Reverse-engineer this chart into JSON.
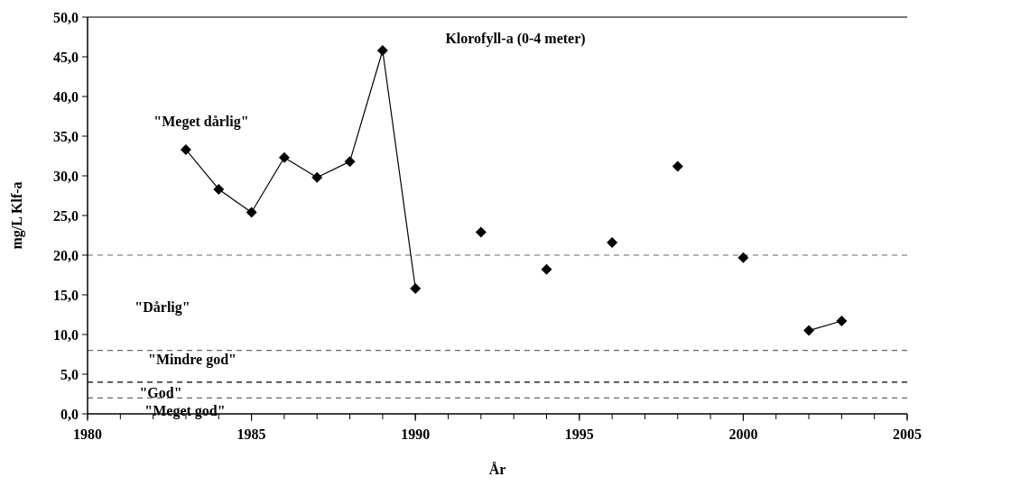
{
  "chart_data": {
    "type": "line",
    "title": "Klorofyll-a (0-4 meter)",
    "xlabel": "År",
    "ylabel": "mg/L Klf-a",
    "x": [
      1983,
      1984,
      1985,
      1986,
      1987,
      1988,
      1989,
      1990,
      1991,
      1992,
      1993,
      1994,
      1995,
      1996,
      1997,
      1998,
      1999,
      2000,
      2001,
      2002,
      2003
    ],
    "series": [
      {
        "color": "#000000",
        "values": [
          33.3,
          28.3,
          25.4,
          32.3,
          29.8,
          31.8,
          45.8,
          15.8,
          null,
          22.9,
          null,
          18.2,
          null,
          21.6,
          null,
          31.2,
          null,
          19.7,
          null,
          10.5,
          11.7
        ]
      }
    ],
    "marker": "diamond",
    "line_style": "solid",
    "grid": false,
    "xlim": [
      1980,
      2005
    ],
    "xticks": [
      1980,
      1985,
      1990,
      1995,
      2000,
      2005
    ],
    "ylim": [
      0,
      50
    ],
    "yticks": [
      {
        "value": 0,
        "label": "0,0"
      },
      {
        "value": 5,
        "label": "5,0"
      },
      {
        "value": 10,
        "label": "10,0"
      },
      {
        "value": 15,
        "label": "15,0"
      },
      {
        "value": 20,
        "label": "20,0"
      },
      {
        "value": 25,
        "label": "25,0"
      },
      {
        "value": 30,
        "label": "30,0"
      },
      {
        "value": 35,
        "label": "35,0"
      },
      {
        "value": 40,
        "label": "40,0"
      },
      {
        "value": 45,
        "label": "45,0"
      },
      {
        "value": 50,
        "label": "50,0"
      }
    ],
    "ref_lines": [
      {
        "axis": "y",
        "value": 20,
        "color": "#666666",
        "line_style": "dashed"
      },
      {
        "axis": "y",
        "value": 8,
        "color": "#666666",
        "line_style": "dashed"
      },
      {
        "axis": "y",
        "value": 4,
        "color": "#000000",
        "line_style": "dashed"
      },
      {
        "axis": "y",
        "value": 2,
        "color": "#666666",
        "line_style": "dashed"
      }
    ],
    "annotations": [
      "\"Meget dårlig\"",
      "\"Dårlig\"",
      "\"Mindre god\"",
      "\"God\"",
      "\"Meget god\""
    ]
  }
}
